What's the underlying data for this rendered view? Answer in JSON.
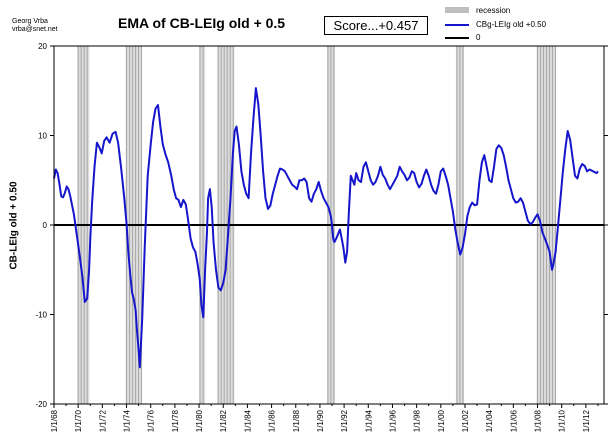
{
  "credit": {
    "line1": "Georg Vrba",
    "line2": "vrba@snet.net"
  },
  "title": "EMA of CB-LEIg old + 0.5",
  "score": "Score...+0.457",
  "legend": [
    {
      "label": "recession",
      "color": "#bfbfbf"
    },
    {
      "label": "CBg-LEIg old +0.50",
      "color": "#1515cc"
    },
    {
      "label": "0",
      "color": "#000000"
    }
  ],
  "chart_data": {
    "type": "line",
    "title": "EMA of CB-LEIg old + 0.5",
    "xlabel": "",
    "ylabel": "CB-LEIg old + 0.50",
    "xlim": [
      1968.0,
      2013.5
    ],
    "ylim": [
      -20,
      20
    ],
    "yticks": [
      -20,
      -10,
      0,
      10,
      20
    ],
    "ytick_labels": [
      "-20",
      "-10",
      "0",
      "10",
      "20"
    ],
    "xtick_labels": [
      "1/1/68",
      "1/1/70",
      "1/1/72",
      "1/1/74",
      "1/1/76",
      "1/1/78",
      "1/1/80",
      "1/1/82",
      "1/1/84",
      "1/1/86",
      "1/1/88",
      "1/1/90",
      "1/1/92",
      "1/1/94",
      "1/1/96",
      "1/1/98",
      "1/1/00",
      "1/1/02",
      "1/1/04",
      "1/1/06",
      "1/1/08",
      "1/1/10",
      "1/1/12"
    ],
    "recessions": [
      [
        1969.92,
        1970.92
      ],
      [
        1973.92,
        1975.25
      ],
      [
        1980.0,
        1980.5
      ],
      [
        1981.5,
        1982.92
      ],
      [
        1990.58,
        1991.25
      ],
      [
        2001.25,
        2001.92
      ],
      [
        2007.92,
        2009.5
      ]
    ],
    "series": [
      {
        "name": "CBg-LEIg old +0.50",
        "color": "#1515cc",
        "x": [
          1968.0,
          1968.15,
          1968.3,
          1968.45,
          1968.6,
          1968.75,
          1968.9,
          1969.05,
          1969.2,
          1969.35,
          1969.5,
          1969.65,
          1969.85,
          1970.1,
          1970.35,
          1970.55,
          1970.75,
          1970.9,
          1971.0,
          1971.15,
          1971.35,
          1971.55,
          1971.75,
          1971.95,
          1972.15,
          1972.35,
          1972.6,
          1972.85,
          1973.1,
          1973.3,
          1973.55,
          1973.8,
          1974.0,
          1974.15,
          1974.3,
          1974.45,
          1974.6,
          1974.75,
          1974.85,
          1975.0,
          1975.1,
          1975.3,
          1975.5,
          1975.75,
          1976.0,
          1976.2,
          1976.4,
          1976.6,
          1976.8,
          1977.0,
          1977.2,
          1977.45,
          1977.7,
          1977.9,
          1978.1,
          1978.3,
          1978.5,
          1978.7,
          1978.9,
          1979.1,
          1979.3,
          1979.5,
          1979.7,
          1979.9,
          1980.05,
          1980.2,
          1980.35,
          1980.5,
          1980.65,
          1980.75,
          1980.9,
          1981.05,
          1981.2,
          1981.4,
          1981.6,
          1981.8,
          1982.0,
          1982.2,
          1982.4,
          1982.6,
          1982.8,
          1982.95,
          1983.1,
          1983.3,
          1983.5,
          1983.7,
          1983.9,
          1984.1,
          1984.3,
          1984.5,
          1984.7,
          1984.9,
          1985.1,
          1985.3,
          1985.5,
          1985.7,
          1985.9,
          1986.1,
          1986.3,
          1986.5,
          1986.7,
          1986.9,
          1987.1,
          1987.3,
          1987.5,
          1987.7,
          1987.9,
          1988.1,
          1988.3,
          1988.5,
          1988.7,
          1988.9,
          1989.1,
          1989.3,
          1989.5,
          1989.7,
          1989.9,
          1990.1,
          1990.3,
          1990.5,
          1990.7,
          1990.9,
          1991.0,
          1991.1,
          1991.2,
          1991.35,
          1991.5,
          1991.65,
          1991.8,
          1991.95,
          1992.1,
          1992.25,
          1992.4,
          1992.55,
          1992.7,
          1992.85,
          1993.0,
          1993.2,
          1993.4,
          1993.6,
          1993.8,
          1994.0,
          1994.2,
          1994.4,
          1994.6,
          1994.8,
          1995.0,
          1995.2,
          1995.4,
          1995.6,
          1995.8,
          1996.0,
          1996.2,
          1996.4,
          1996.6,
          1996.8,
          1997.0,
          1997.2,
          1997.4,
          1997.6,
          1997.8,
          1998.0,
          1998.2,
          1998.4,
          1998.6,
          1998.8,
          1999.0,
          1999.2,
          1999.4,
          1999.6,
          1999.8,
          2000.0,
          2000.2,
          2000.4,
          2000.6,
          2000.8,
          2001.0,
          2001.2,
          2001.4,
          2001.6,
          2001.8,
          2002.0,
          2002.2,
          2002.4,
          2002.6,
          2002.8,
          2003.0,
          2003.2,
          2003.4,
          2003.6,
          2003.8,
          2004.0,
          2004.2,
          2004.4,
          2004.6,
          2004.8,
          2005.0,
          2005.2,
          2005.4,
          2005.6,
          2005.8,
          2006.0,
          2006.2,
          2006.4,
          2006.6,
          2006.8,
          2007.0,
          2007.2,
          2007.4,
          2007.6,
          2007.8,
          2008.0,
          2008.2,
          2008.4,
          2008.6,
          2008.8,
          2009.0,
          2009.1,
          2009.2,
          2009.3,
          2009.5,
          2009.7,
          2009.9,
          2010.1,
          2010.3,
          2010.5,
          2010.7,
          2010.9,
          2011.1,
          2011.3,
          2011.5,
          2011.7,
          2011.9,
          2012.1,
          2012.3,
          2012.6,
          2012.9,
          2013.0
        ],
        "y": [
          5.2,
          6.2,
          5.8,
          4.6,
          3.2,
          3.1,
          3.6,
          4.3,
          4.0,
          3.2,
          2.2,
          1.2,
          -0.8,
          -3.2,
          -5.8,
          -8.6,
          -8.2,
          -5.0,
          -1.5,
          2.5,
          6.5,
          9.2,
          8.7,
          8.0,
          9.4,
          9.8,
          9.2,
          10.2,
          10.4,
          9.2,
          6.4,
          3.2,
          0.2,
          -3.0,
          -5.5,
          -7.5,
          -8.3,
          -9.5,
          -11.5,
          -14.0,
          -15.9,
          -10.5,
          -2.5,
          5.5,
          9.0,
          11.5,
          13.0,
          13.4,
          11.0,
          9.0,
          8.0,
          7.0,
          5.5,
          4.0,
          3.0,
          2.8,
          2.0,
          2.8,
          2.3,
          0.5,
          -1.5,
          -2.5,
          -3.0,
          -4.5,
          -6.0,
          -9.0,
          -10.3,
          -5.0,
          -1.0,
          3.0,
          4.0,
          2.0,
          -2.0,
          -5.0,
          -7.0,
          -7.3,
          -6.5,
          -5.0,
          -1.0,
          3.0,
          8.0,
          10.5,
          11.0,
          9.0,
          6.0,
          4.5,
          3.5,
          3.0,
          8.0,
          12.0,
          15.3,
          13.5,
          10.0,
          6.0,
          3.0,
          1.8,
          2.2,
          3.5,
          4.5,
          5.5,
          6.3,
          6.2,
          6.0,
          5.5,
          5.0,
          4.5,
          4.3,
          4.0,
          5.0,
          5.0,
          5.2,
          4.8,
          3.0,
          2.6,
          3.5,
          4.0,
          4.8,
          3.8,
          3.0,
          2.5,
          2.0,
          1.0,
          0.0,
          -1.5,
          -1.9,
          -1.5,
          -1.0,
          -0.5,
          -1.5,
          -2.6,
          -4.2,
          -3.0,
          1.5,
          5.5,
          5.0,
          4.5,
          5.8,
          5.0,
          4.8,
          6.5,
          7.0,
          6.0,
          5.0,
          4.5,
          4.8,
          5.5,
          6.5,
          5.6,
          5.2,
          4.5,
          4.0,
          4.5,
          5.0,
          5.5,
          6.5,
          6.0,
          5.6,
          5.0,
          5.3,
          6.0,
          5.8,
          4.8,
          4.2,
          4.6,
          5.5,
          6.2,
          5.5,
          4.5,
          3.8,
          3.5,
          4.5,
          6.0,
          6.3,
          5.5,
          4.5,
          3.0,
          1.5,
          -0.5,
          -2.0,
          -3.3,
          -2.5,
          -1.0,
          1.0,
          2.0,
          2.5,
          2.2,
          2.3,
          5.0,
          7.0,
          7.8,
          6.5,
          5.0,
          4.8,
          6.5,
          8.5,
          8.9,
          8.6,
          7.8,
          6.5,
          5.0,
          4.0,
          3.0,
          2.5,
          2.6,
          3.0,
          2.5,
          1.5,
          0.5,
          0.1,
          0.3,
          0.8,
          1.2,
          0.5,
          -0.8,
          -1.5,
          -2.2,
          -3.0,
          -4.0,
          -5.0,
          -4.5,
          -3.0,
          0.0,
          3.0,
          6.0,
          8.5,
          10.5,
          9.5,
          7.5,
          5.5,
          5.2,
          6.3,
          6.8,
          6.6,
          6.0,
          6.2,
          6.0,
          5.8,
          6.0
        ]
      },
      {
        "name": "0",
        "color": "#000000",
        "x": [
          1968.0,
          2013.5
        ],
        "y": [
          0,
          0
        ]
      }
    ],
    "legend_position": "top-right",
    "grid": false
  }
}
